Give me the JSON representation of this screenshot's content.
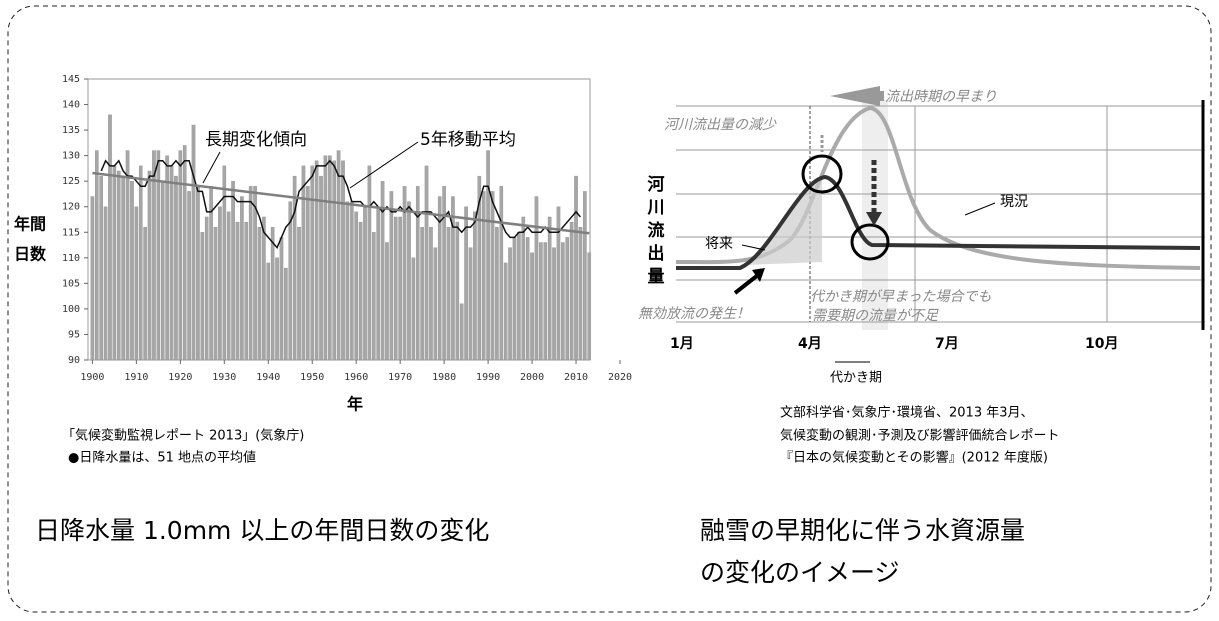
{
  "chart_data": {
    "type": "bar",
    "ylabel": [
      "年間",
      "日数"
    ],
    "xlabel": "年",
    "x": [
      1900,
      1901,
      1902,
      1903,
      1904,
      1905,
      1906,
      1907,
      1908,
      1909,
      1910,
      1911,
      1912,
      1913,
      1914,
      1915,
      1916,
      1917,
      1918,
      1919,
      1920,
      1921,
      1922,
      1923,
      1924,
      1925,
      1926,
      1927,
      1928,
      1929,
      1930,
      1931,
      1932,
      1933,
      1934,
      1935,
      1936,
      1937,
      1938,
      1939,
      1940,
      1941,
      1942,
      1943,
      1944,
      1945,
      1946,
      1947,
      1948,
      1949,
      1950,
      1951,
      1952,
      1953,
      1954,
      1955,
      1956,
      1957,
      1958,
      1959,
      1960,
      1961,
      1962,
      1963,
      1964,
      1965,
      1966,
      1967,
      1968,
      1969,
      1970,
      1971,
      1972,
      1973,
      1974,
      1975,
      1976,
      1977,
      1978,
      1979,
      1980,
      1981,
      1982,
      1983,
      1984,
      1985,
      1986,
      1987,
      1988,
      1989,
      1990,
      1991,
      1992,
      1993,
      1994,
      1995,
      1996,
      1997,
      1998,
      1999,
      2000,
      2001,
      2002,
      2003,
      2004,
      2005,
      2006,
      2007,
      2008,
      2009,
      2010,
      2011,
      2012,
      2013
    ],
    "series": [
      {
        "color": "#a6a6a6",
        "values": [
          122,
          131,
          126,
          120,
          138,
          128,
          127,
          126,
          131,
          125,
          120,
          128,
          116,
          127,
          131,
          131,
          125,
          130,
          128,
          126,
          131,
          132,
          123,
          136,
          124,
          115,
          118,
          124,
          116,
          120,
          128,
          119,
          125,
          117,
          122,
          117,
          124,
          124,
          116,
          118,
          109,
          116,
          110,
          114,
          108,
          121,
          126,
          116,
          128,
          124,
          128,
          129,
          126,
          130,
          130,
          129,
          131,
          129,
          121,
          121,
          119,
          117,
          120,
          128,
          115,
          120,
          125,
          113,
          123,
          118,
          118,
          124,
          121,
          110,
          124,
          116,
          128,
          116,
          112,
          122,
          124,
          116,
          122,
          117,
          101,
          120,
          112,
          119,
          126,
          123,
          131,
          123,
          116,
          124,
          109,
          112,
          114,
          115,
          118,
          114,
          111,
          122,
          113,
          113,
          118,
          112,
          120,
          113,
          114,
          117,
          126,
          116,
          123,
          111
        ]
      },
      {
        "name": "5年移動平均",
        "type": "line",
        "color": "#111111",
        "values": [
          null,
          null,
          127,
          129,
          128,
          128,
          129,
          127,
          126,
          126,
          125,
          124,
          124,
          126,
          126,
          129,
          129,
          128,
          128,
          129,
          128,
          129,
          129,
          126,
          123,
          123,
          119,
          119,
          120,
          121,
          122,
          122,
          122,
          121,
          121,
          121,
          121,
          120,
          118,
          115,
          114,
          113,
          112,
          114,
          116,
          117,
          119,
          123,
          124,
          125,
          126,
          128,
          128,
          128,
          129,
          128,
          126,
          126,
          124,
          121,
          121,
          121,
          120,
          120,
          121,
          120,
          119,
          120,
          119,
          119,
          120,
          119,
          120,
          119,
          118,
          119,
          119,
          119,
          118,
          117,
          118,
          119,
          116,
          116,
          115,
          116,
          116,
          117,
          121,
          124,
          124,
          121,
          119,
          117,
          115,
          114,
          114,
          115,
          115,
          116,
          115,
          115,
          115,
          116,
          115,
          115,
          115,
          116,
          117,
          118,
          119,
          118,
          null,
          null
        ]
      }
    ],
    "trend": {
      "name": "長期変化傾向",
      "color": "#7f7f7f",
      "x": [
        1900,
        2013
      ],
      "values": [
        126.6,
        114.8
      ]
    },
    "xlim": [
      1899,
      2020
    ],
    "ylim": [
      90,
      145
    ],
    "xticks": [
      1900,
      1910,
      1920,
      1930,
      1940,
      1950,
      1960,
      1970,
      1980,
      1990,
      2000,
      2010,
      2020
    ],
    "yticks": [
      90,
      95,
      100,
      105,
      110,
      115,
      120,
      125,
      130,
      135,
      140,
      145
    ],
    "source": [
      "「気候変動監視レポート 2013」(気象庁)",
      "●日降水量は、51 地点の平均値"
    ],
    "caption": "日降水量 1.0mm 以上の年間日数の変化"
  },
  "diagram": {
    "ylabel": [
      "河",
      "川",
      "流",
      "出",
      "量"
    ],
    "months": [
      "1月",
      "4月",
      "7月",
      "10月"
    ],
    "puddling": "代かき期",
    "labels": {
      "earlier": "流出時期の早まり",
      "decrease": "河川流出量の減少",
      "current": "現況",
      "future": "将来",
      "shortage": [
        "代かき期が早まった場合でも",
        "需要期の流量が不足"
      ],
      "waste": "無効放流の発生！"
    },
    "source": [
      "文部科学省･気象庁･環境省、2013 年3月、",
      "気候変動の観測･予測及び影響評価統合レポート",
      "『日本の気候変動とその影響』(2012 年度版)"
    ],
    "caption": [
      "融雪の早期化に伴う水資源量",
      "の変化のイメージ"
    ]
  }
}
